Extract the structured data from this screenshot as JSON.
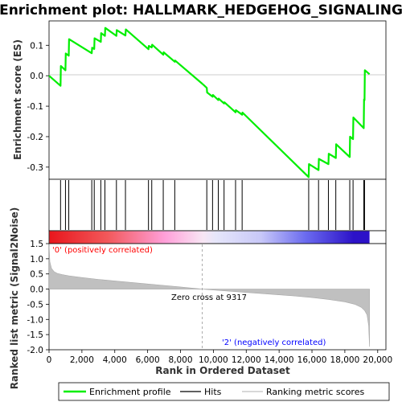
{
  "chart_data": [
    {
      "type": "line",
      "title": "Enrichment plot: HALLMARK_HEDGEHOG_SIGNALING",
      "ylabel": "Enrichment score (ES)",
      "ylim": [
        -0.34,
        0.18
      ],
      "yticks": [
        "0.1",
        "0.0",
        "-0.1",
        "-0.2",
        "-0.3"
      ],
      "ytick_values": [
        0.1,
        0.0,
        -0.1,
        -0.2,
        -0.3
      ],
      "xlim": [
        0,
        20500
      ],
      "series": [
        {
          "name": "Enrichment profile",
          "color": "#00ee00",
          "x": [
            0,
            700,
            720,
            1000,
            1020,
            1200,
            1220,
            2600,
            2620,
            2750,
            2770,
            3150,
            3170,
            3400,
            3420,
            4100,
            4120,
            4650,
            4670,
            6050,
            6070,
            6250,
            6270,
            6950,
            6970,
            7650,
            7670,
            9317,
            9600,
            9620,
            9950,
            9970,
            10300,
            10320,
            10650,
            10670,
            11350,
            11370,
            11750,
            11770,
            15800,
            15820,
            16400,
            16420,
            17000,
            17020,
            17450,
            17470,
            18300,
            18320,
            18500,
            18520,
            19150,
            19170,
            19200,
            19220,
            19500
          ],
          "y": [
            0.0,
            -0.033,
            0.032,
            0.018,
            0.073,
            0.066,
            0.12,
            0.074,
            0.092,
            0.088,
            0.123,
            0.111,
            0.14,
            0.131,
            0.157,
            0.131,
            0.15,
            0.132,
            0.152,
            0.087,
            0.098,
            0.093,
            0.102,
            0.069,
            0.077,
            0.046,
            0.05,
            -0.026,
            -0.04,
            -0.055,
            -0.069,
            -0.063,
            -0.08,
            -0.075,
            -0.091,
            -0.087,
            -0.12,
            -0.113,
            -0.128,
            -0.121,
            -0.333,
            -0.29,
            -0.31,
            -0.273,
            -0.29,
            -0.256,
            -0.27,
            -0.225,
            -0.267,
            -0.2,
            -0.208,
            -0.137,
            -0.172,
            -0.078,
            -0.08,
            0.018,
            0.005
          ]
        }
      ]
    },
    {
      "type": "bar",
      "ylabel": "",
      "series": [
        {
          "name": "Hits",
          "x": [
            700,
            1000,
            1200,
            2600,
            2750,
            3150,
            3400,
            4100,
            4650,
            6050,
            6250,
            6950,
            7650,
            9600,
            9950,
            10300,
            10650,
            11350,
            11750,
            15800,
            16400,
            17000,
            17450,
            18300,
            18500,
            19150,
            19200
          ]
        }
      ]
    },
    {
      "type": "area",
      "ylabel": "Ranked list metric (Signal2Noise)",
      "xlabel": "Rank in Ordered Dataset",
      "xlim": [
        0,
        20500
      ],
      "ylim": [
        -2.0,
        1.5
      ],
      "xticks": [
        "0",
        "2,000",
        "4,000",
        "6,000",
        "8,000",
        "10,000",
        "12,000",
        "14,000",
        "16,000",
        "18,000",
        "20,000"
      ],
      "xtick_values": [
        0,
        2000,
        4000,
        6000,
        8000,
        10000,
        12000,
        14000,
        16000,
        18000,
        20000
      ],
      "yticks": [
        "1.5",
        "1.0",
        "0.5",
        "0.0",
        "-0.5",
        "-1.0",
        "-1.5",
        "-2.0"
      ],
      "ytick_values": [
        1.5,
        1.0,
        0.5,
        0.0,
        -0.5,
        -1.0,
        -1.5,
        -2.0
      ],
      "series": [
        {
          "name": "Ranking metric scores",
          "color": "#c0c0c0",
          "x": [
            0,
            50,
            150,
            300,
            500,
            800,
            1200,
            2000,
            3000,
            4000,
            5000,
            6000,
            7000,
            8000,
            9317,
            10000,
            11000,
            12000,
            13000,
            14000,
            15000,
            16000,
            17000,
            18000,
            18600,
            19000,
            19200,
            19350,
            19450,
            19500
          ],
          "y": [
            1.5,
            0.9,
            0.68,
            0.58,
            0.52,
            0.48,
            0.44,
            0.38,
            0.32,
            0.27,
            0.22,
            0.17,
            0.12,
            0.07,
            0.0,
            -0.03,
            -0.07,
            -0.11,
            -0.15,
            -0.19,
            -0.23,
            -0.28,
            -0.34,
            -0.42,
            -0.5,
            -0.6,
            -0.7,
            -0.85,
            -1.2,
            -1.9
          ]
        }
      ],
      "annotations": {
        "positive": "'0' (positively correlated)",
        "negative": "'2' (negatively correlated)",
        "zero_cross": "Zero cross at 9317",
        "zero_cross_x": 9317
      }
    }
  ],
  "colors": {
    "es_line": "#00ee00",
    "positive_label": "#ff0000",
    "negative_label": "#0000ff",
    "metric_fill": "#c0c0c0"
  },
  "legend": {
    "items": [
      "Enrichment profile",
      "Hits",
      "Ranking metric scores"
    ]
  }
}
